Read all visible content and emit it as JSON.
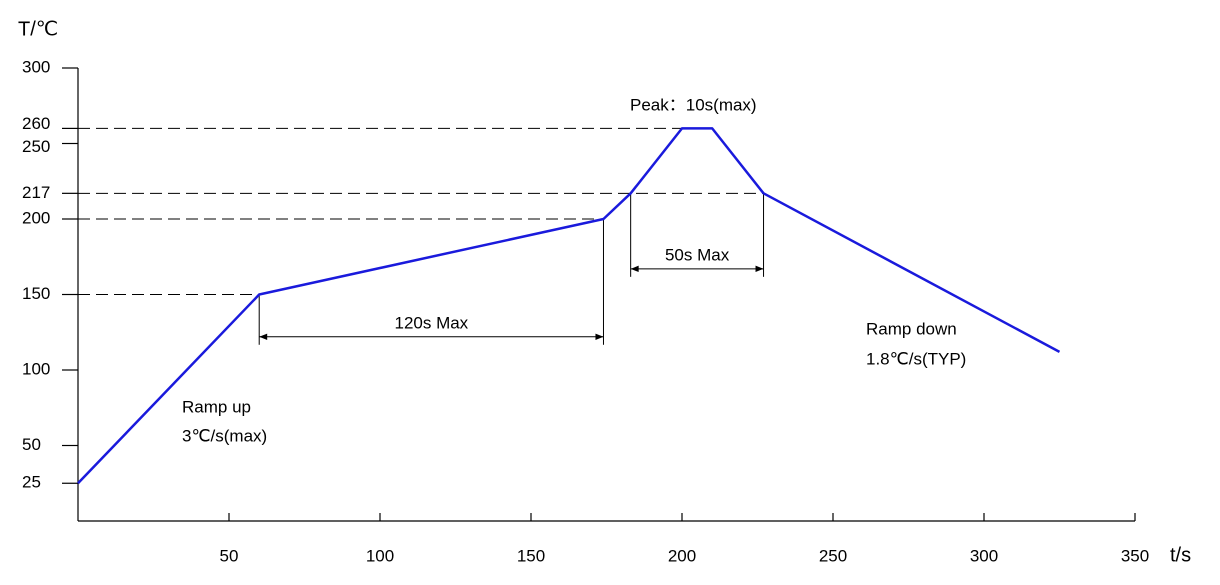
{
  "chart_data": {
    "type": "line",
    "y_label": "T/℃",
    "x_label": "t/s",
    "x": [
      0,
      60,
      174,
      183,
      200,
      210,
      227,
      325
    ],
    "series": [
      {
        "color": "#1a1adc",
        "values": [
          25,
          150,
          200,
          217,
          260,
          260,
          217,
          112
        ]
      }
    ],
    "xlim": [
      0,
      350
    ],
    "ylim": [
      0,
      300
    ],
    "xticks": [
      50,
      100,
      150,
      200,
      250,
      300,
      350
    ],
    "yticks": [
      25,
      50,
      100,
      150,
      200,
      217,
      250,
      260,
      300
    ],
    "dimensions": [
      {
        "label": "120s Max",
        "x": [
          60,
          174
        ],
        "y": 122
      },
      {
        "label": "50s Max",
        "x": [
          183,
          227
        ],
        "y": 167
      }
    ],
    "annotations": {
      "peak": "Peak：10s(max)",
      "ramp_up": "Ramp up",
      "ramp_up_rate": "3℃/s(max)",
      "ramp_down": "Ramp down",
      "ramp_down_rate": "1.8℃/s(TYP)"
    }
  }
}
